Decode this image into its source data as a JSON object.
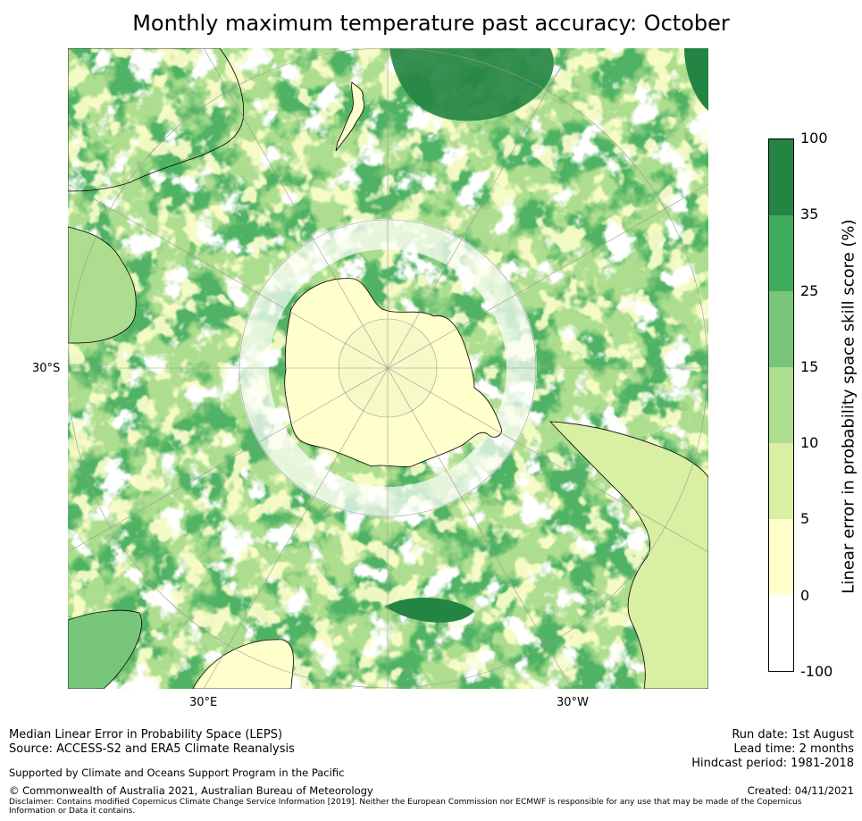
{
  "title": "Monthly maximum temperature past accuracy: October",
  "map": {
    "lat_label": "30°S",
    "lon_labels": {
      "left": "30°E",
      "right": "30°W"
    },
    "colors": {
      "land_line": "#000000",
      "grid": "#999999",
      "ice": "#ffffcc",
      "ice_inner": "#f2f9c4"
    }
  },
  "colorbar": {
    "label": "Linear error in probability space skill score (%)",
    "ticks": [
      "100",
      "35",
      "25",
      "15",
      "10",
      "5",
      "0",
      "-100"
    ],
    "bins": [
      {
        "from": -100,
        "to": 0,
        "color": "#ffffff"
      },
      {
        "from": 0,
        "to": 5,
        "color": "#ffffcc"
      },
      {
        "from": 5,
        "to": 10,
        "color": "#d9f0a3"
      },
      {
        "from": 10,
        "to": 15,
        "color": "#addd8e"
      },
      {
        "from": 15,
        "to": 25,
        "color": "#78c679"
      },
      {
        "from": 25,
        "to": 35,
        "color": "#41ab5d"
      },
      {
        "from": 35,
        "to": 100,
        "color": "#238443"
      }
    ]
  },
  "footer": {
    "line1": "Median Linear Error in Probability Space (LEPS)",
    "line2": "Source: ACCESS-S2 and ERA5 Climate Reanalysis",
    "supported": "Supported by Climate and Oceans Support Program in the Pacific",
    "copyright": "© Commonwealth of Australia 2021, Australian Bureau of Meteorology",
    "disclaimer1": "Disclaimer: Contains modified Copernicus Climate Change Service Information [2019]. Neither the European Commission nor ECMWF is responsible for any use that may be made of the Copernicus",
    "disclaimer2": "Information or Data it contains.",
    "run_date": "Run date: 1st August",
    "lead_time": "Lead time: 2 months",
    "hindcast": "Hindcast period: 1981-2018",
    "created": "Created: 04/11/2021"
  }
}
